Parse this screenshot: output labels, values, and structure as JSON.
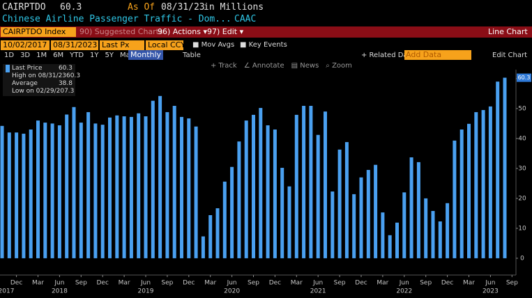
{
  "header": {
    "ticker": "CAIRPTDO",
    "last": 60.3,
    "as_of_label": "As Of",
    "as_of_date": "08/31/23",
    "units": "in Millions",
    "description": "Chinese Airline Passenger Traffic - Dom...",
    "source": "CAAC"
  },
  "menu": {
    "security": "CAIRPTDO Index",
    "items": [
      "90) Suggested Charts",
      "96) Actions ▾",
      "97) Edit ▾"
    ],
    "chart_type": "Line Chart"
  },
  "controls": {
    "start_date": "10/02/2017",
    "end_date": "08/31/2023",
    "field": "Last Px",
    "currency": "Local CCY",
    "toggles": [
      "Mov Avgs",
      "Key Events"
    ]
  },
  "ranges": [
    "1D",
    "3D",
    "1M",
    "6M",
    "YTD",
    "1Y",
    "5Y",
    "Max"
  ],
  "frequency": "Monthly",
  "view": "Table",
  "related": "+ Related Dat",
  "add_data": "Add Data",
  "edit_chart": "Edit Chart",
  "tools": [
    "+ Track",
    "∠ Annotate",
    "▤ News",
    "⌕ Zoom"
  ],
  "chart_data": {
    "type": "bar",
    "color": "#4aa0f0",
    "legend_stats": [
      {
        "label": "Last Price",
        "value": 60.3
      },
      {
        "label": "High on 08/31/23",
        "value": 60.3
      },
      {
        "label": "Average",
        "value": 38.8
      },
      {
        "label": "Low on 02/29/20",
        "value": 7.3
      }
    ],
    "ylim": [
      -5.6,
      63
    ],
    "yticks": [
      0,
      10,
      20,
      30,
      40,
      50,
      60
    ],
    "categories": [
      null,
      null,
      "Dec",
      null,
      null,
      "Mar",
      null,
      null,
      "Jun",
      null,
      null,
      "Sep",
      null,
      null,
      "Dec",
      null,
      null,
      "Mar",
      null,
      null,
      "Jun",
      null,
      null,
      "Sep",
      null,
      null,
      "Dec",
      null,
      null,
      "Mar",
      null,
      null,
      "Jun",
      null,
      null,
      "Sep",
      null,
      null,
      "Dec",
      null,
      null,
      "Mar",
      null,
      null,
      "Jun",
      null,
      null,
      "Sep",
      null,
      null,
      "Dec",
      null,
      null,
      "Mar",
      null,
      null,
      "Jun",
      null,
      null,
      "Sep",
      null,
      null,
      "Dec",
      null,
      null,
      "Mar",
      null,
      null,
      "Jun",
      null,
      null,
      "Sep"
    ],
    "years": [
      "2017",
      null,
      null,
      null,
      null,
      null,
      null,
      null,
      "2018",
      null,
      null,
      null,
      null,
      null,
      null,
      null,
      null,
      null,
      null,
      null,
      "2019",
      null,
      null,
      null,
      null,
      null,
      null,
      null,
      null,
      null,
      null,
      null,
      "2020",
      null,
      null,
      null,
      null,
      null,
      null,
      null,
      null,
      null,
      null,
      null,
      "2021",
      null,
      null,
      null,
      null,
      null,
      null,
      null,
      null,
      null,
      null,
      null,
      "2022",
      null,
      null,
      null,
      null,
      null,
      null,
      null,
      null,
      null,
      null,
      null,
      "2023",
      null,
      null,
      null
    ],
    "values": [
      44.2,
      42,
      42,
      41.6,
      43,
      46,
      45.3,
      45,
      44.4,
      48,
      50.5,
      45.3,
      48.8,
      45,
      44.6,
      47,
      47.7,
      47.4,
      47.2,
      48.4,
      47.4,
      52.6,
      54.2,
      48.8,
      50.9,
      47.2,
      46.7,
      44,
      7.3,
      14.4,
      16.7,
      25.6,
      30.5,
      39,
      46,
      47.9,
      50.2,
      44.4,
      43,
      30.2,
      24,
      47.9,
      50.9,
      50.9,
      41.2,
      49,
      22.3,
      36.3,
      38.8,
      21.4,
      27,
      29.5,
      31.2,
      15.3,
      7.7,
      11.9,
      22,
      33.7,
      32.1,
      20,
      15.8,
      12.3,
      18.4,
      39.3,
      43,
      44.9,
      48.8,
      49.5,
      50.7,
      59,
      60.3,
      null
    ]
  }
}
